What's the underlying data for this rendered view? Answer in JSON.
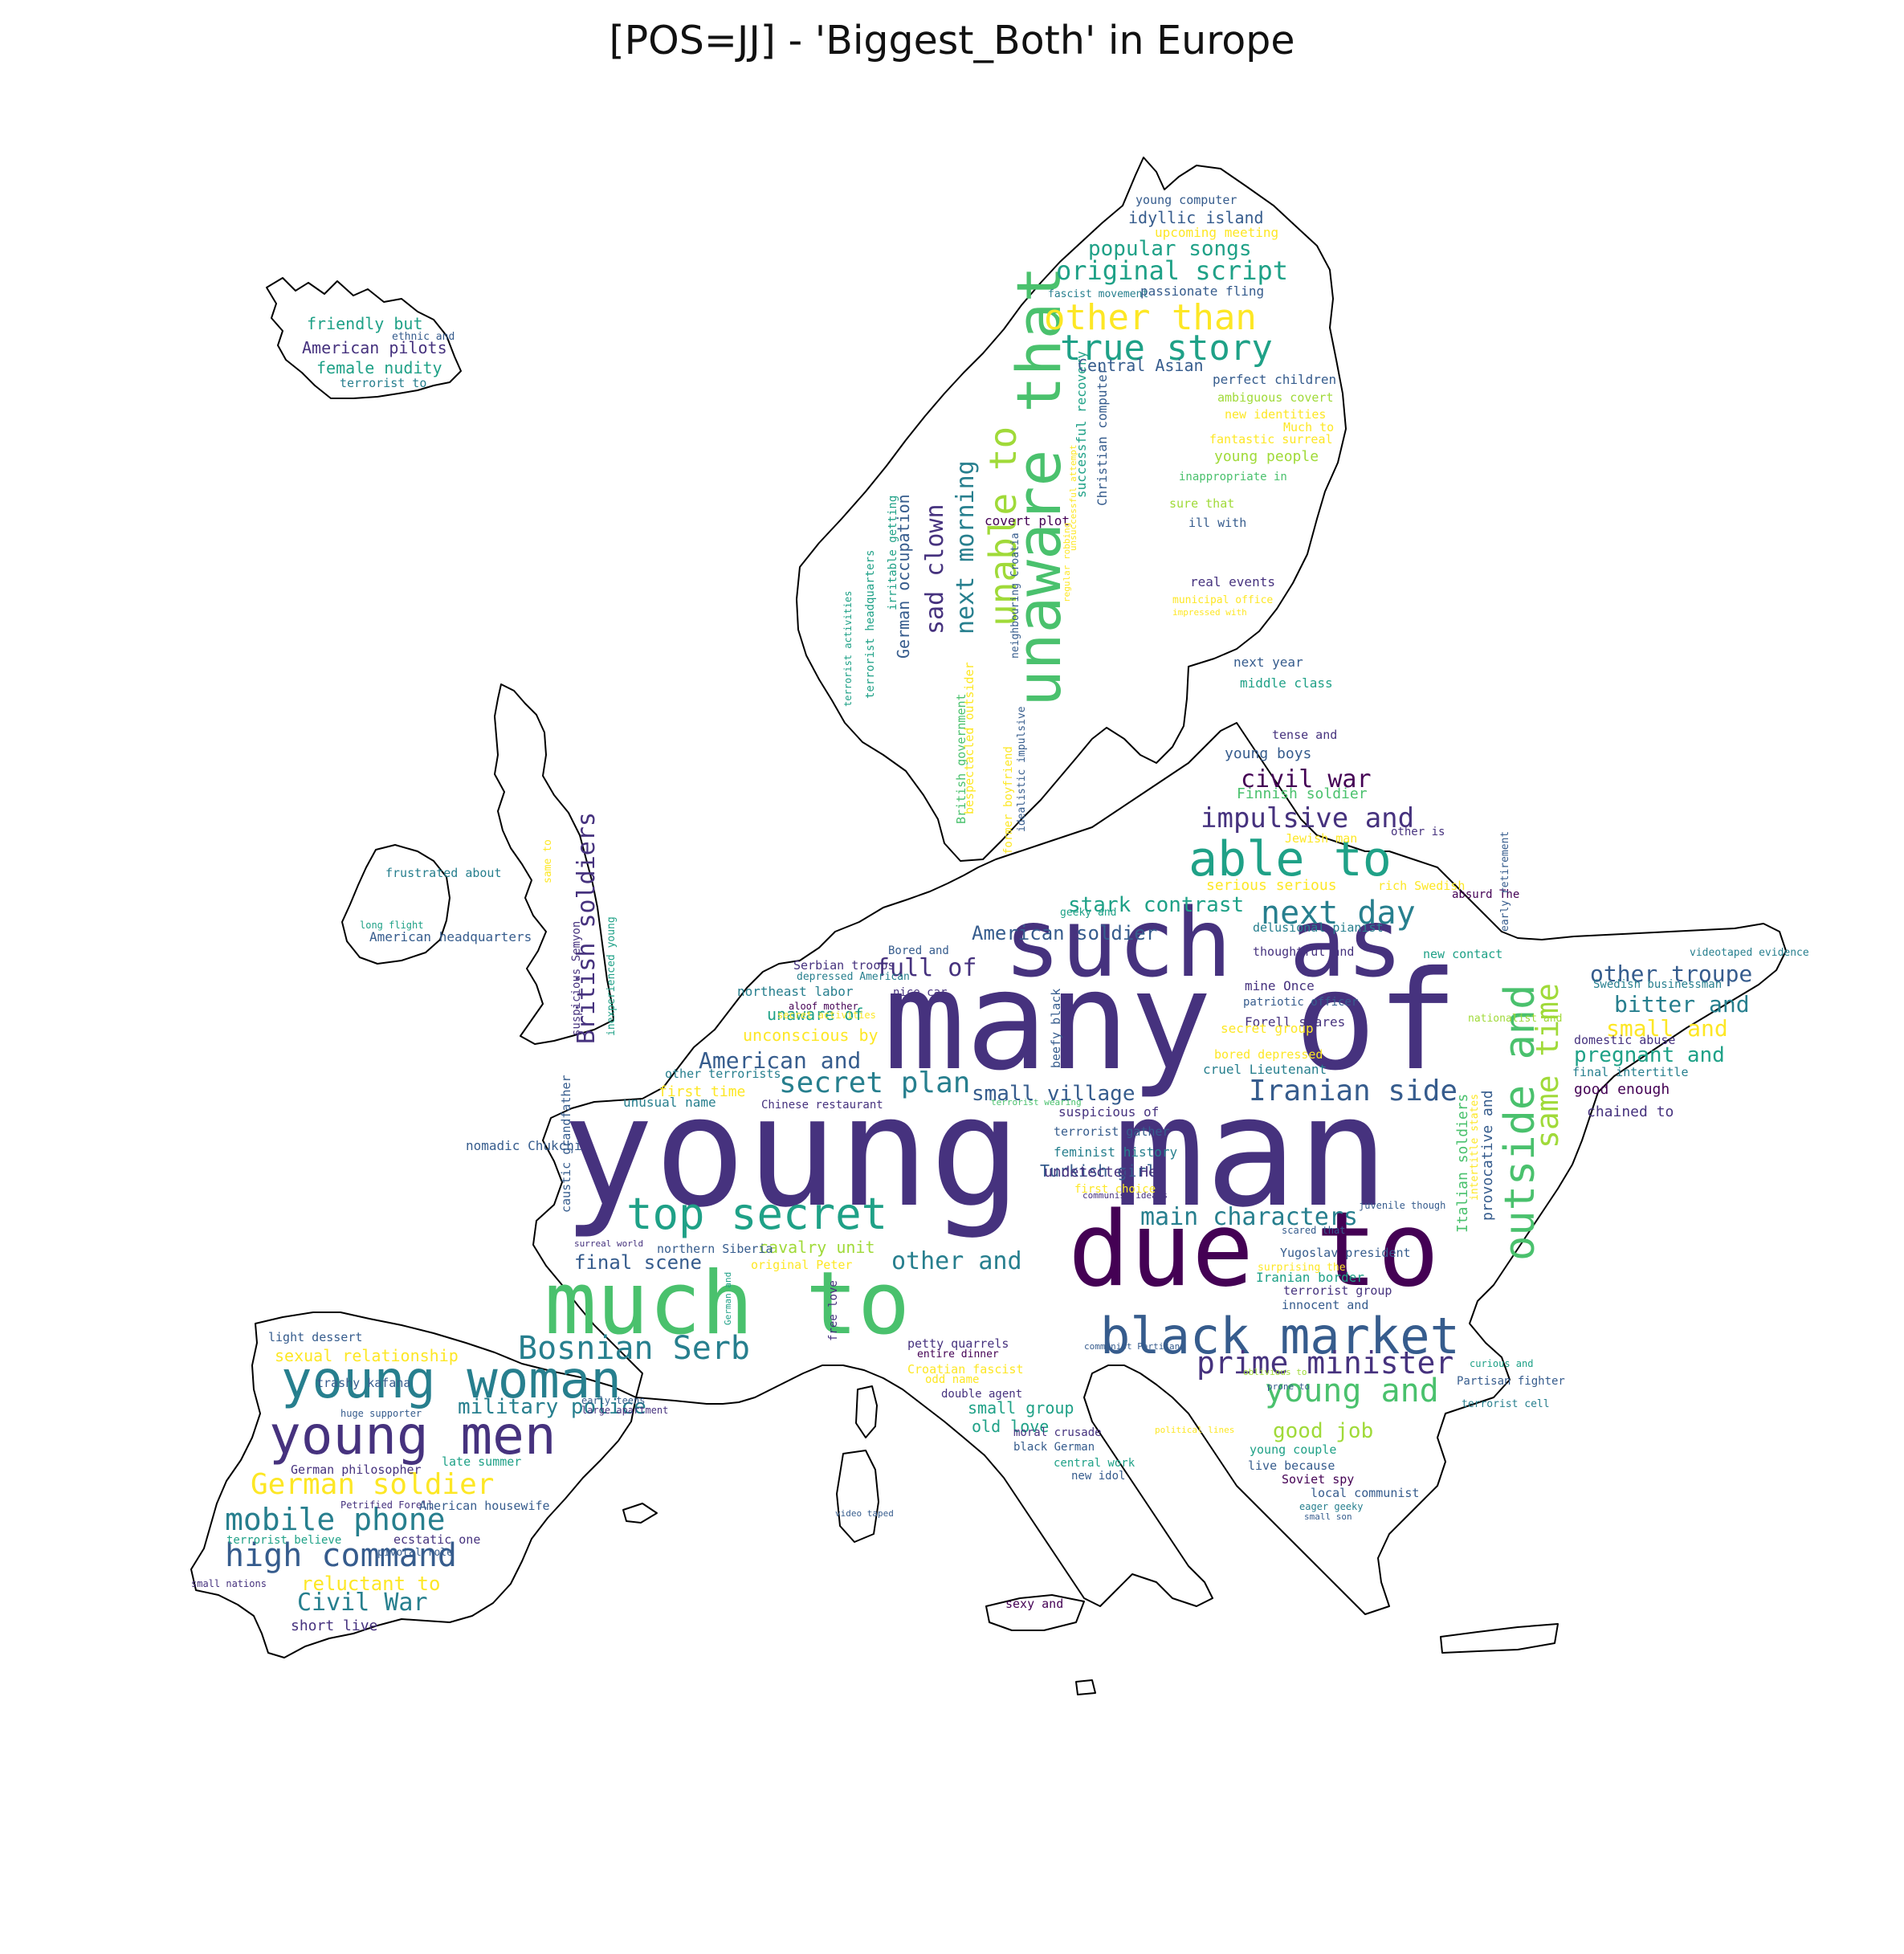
{
  "title": "[POS=JJ] - 'Biggest_Both' in Europe",
  "palette": {
    "c1": "#440154",
    "c2": "#46327e",
    "c3": "#365c8d",
    "c4": "#277f8e",
    "c5": "#1fa187",
    "c6": "#4ac16d",
    "c7": "#a0da39",
    "c8": "#fde725"
  },
  "words": [
    {
      "t": "young man",
      "c": "c2"
    },
    {
      "t": "many of",
      "c": "c2"
    },
    {
      "t": "such as",
      "c": "c2"
    },
    {
      "t": "due to",
      "c": "c1"
    },
    {
      "t": "much to",
      "c": "c6"
    },
    {
      "t": "unaware that",
      "c": "c6"
    },
    {
      "t": "black market",
      "c": "c3"
    },
    {
      "t": "top secret",
      "c": "c5"
    },
    {
      "t": "young woman",
      "c": "c4"
    },
    {
      "t": "young men",
      "c": "c2"
    },
    {
      "t": "able to",
      "c": "c5"
    },
    {
      "t": "outside and",
      "c": "c6"
    },
    {
      "t": "same time",
      "c": "c7"
    },
    {
      "t": "other than",
      "c": "c8"
    },
    {
      "t": "true story",
      "c": "c5"
    },
    {
      "t": "Bosnian Serb",
      "c": "c4"
    },
    {
      "t": "prime minister",
      "c": "c2"
    },
    {
      "t": "young and",
      "c": "c6"
    },
    {
      "t": "next day",
      "c": "c4"
    },
    {
      "t": "Iranian side",
      "c": "c3"
    },
    {
      "t": "secret plan",
      "c": "c4"
    },
    {
      "t": "high command",
      "c": "c3"
    },
    {
      "t": "mobile phone",
      "c": "c4"
    },
    {
      "t": "German soldier",
      "c": "c8"
    },
    {
      "t": "unable to",
      "c": "c7"
    },
    {
      "t": "impulsive and",
      "c": "c2"
    },
    {
      "t": "original script",
      "c": "c5"
    },
    {
      "t": "popular songs",
      "c": "c5"
    },
    {
      "t": "next morning",
      "c": "c4"
    },
    {
      "t": "sad clown",
      "c": "c2"
    },
    {
      "t": "British soldiers",
      "c": "c2"
    },
    {
      "t": "civil war",
      "c": "c1"
    },
    {
      "t": "full of",
      "c": "c2"
    },
    {
      "t": "American and",
      "c": "c3"
    },
    {
      "t": "other and",
      "c": "c4"
    },
    {
      "t": "main characters",
      "c": "c4"
    },
    {
      "t": "Civil War",
      "c": "c4"
    },
    {
      "t": "military police",
      "c": "c4"
    },
    {
      "t": "small village",
      "c": "c3"
    },
    {
      "t": "other troupe",
      "c": "c3"
    },
    {
      "t": "bitter and",
      "c": "c4"
    },
    {
      "t": "small and",
      "c": "c8"
    },
    {
      "t": "pregnant and",
      "c": "c5"
    },
    {
      "t": "final scene",
      "c": "c3"
    },
    {
      "t": "reluctant to",
      "c": "c8"
    },
    {
      "t": "stark contrast",
      "c": "c5"
    },
    {
      "t": "American soldier",
      "c": "c3"
    },
    {
      "t": "good job",
      "c": "c7"
    },
    {
      "t": "sexual relationship",
      "c": "c8"
    },
    {
      "t": "small group",
      "c": "c5"
    },
    {
      "t": "old love",
      "c": "c5"
    },
    {
      "t": "cavalry unit",
      "c": "c7"
    },
    {
      "t": "unaware of",
      "c": "c5"
    },
    {
      "t": "unconscious by",
      "c": "c8"
    },
    {
      "t": "first time",
      "c": "c8"
    },
    {
      "t": "Turkish girl",
      "c": "c3"
    },
    {
      "t": "idyllic island",
      "c": "c3"
    },
    {
      "t": "German occupation",
      "c": "c3"
    },
    {
      "t": "Christian computer",
      "c": "c3"
    },
    {
      "t": "successful recovery",
      "c": "c5"
    },
    {
      "t": "Central Asian",
      "c": "c3"
    },
    {
      "t": "young people",
      "c": "c7"
    },
    {
      "t": "young boys",
      "c": "c3"
    },
    {
      "t": "Finnish soldier",
      "c": "c6"
    },
    {
      "t": "friendly but",
      "c": "c5"
    },
    {
      "t": "American pilots",
      "c": "c2"
    },
    {
      "t": "female nudity",
      "c": "c5"
    },
    {
      "t": "terrorist to",
      "c": "c4"
    },
    {
      "t": "ethnic and",
      "c": "c3"
    },
    {
      "t": "young computer",
      "c": "c3"
    },
    {
      "t": "upcoming meeting",
      "c": "c8"
    },
    {
      "t": "passionate fling",
      "c": "c3"
    },
    {
      "t": "fascist movement",
      "c": "c4"
    },
    {
      "t": "perfect children",
      "c": "c3"
    },
    {
      "t": "ambiguous covert",
      "c": "c7"
    },
    {
      "t": "new identities",
      "c": "c8"
    },
    {
      "t": "Much to",
      "c": "c8"
    },
    {
      "t": "fantastic surreal",
      "c": "c8"
    },
    {
      "t": "inappropriate in",
      "c": "c6"
    },
    {
      "t": "sure that",
      "c": "c7"
    },
    {
      "t": "ill with",
      "c": "c3"
    },
    {
      "t": "covert plot",
      "c": "c1"
    },
    {
      "t": "real events",
      "c": "c2"
    },
    {
      "t": "municipal office",
      "c": "c8"
    },
    {
      "t": "impressed with",
      "c": "c8"
    },
    {
      "t": "next year",
      "c": "c3"
    },
    {
      "t": "middle class",
      "c": "c5"
    },
    {
      "t": "tense and",
      "c": "c2"
    },
    {
      "t": "other is",
      "c": "c2"
    },
    {
      "t": "Jewish man",
      "c": "c8"
    },
    {
      "t": "serious serious",
      "c": "c8"
    },
    {
      "t": "rich Swedish",
      "c": "c8"
    },
    {
      "t": "absurd The",
      "c": "c1"
    },
    {
      "t": "geeky and",
      "c": "c5"
    },
    {
      "t": "delusional pianist",
      "c": "c4"
    },
    {
      "t": "thoughtful and",
      "c": "c2"
    },
    {
      "t": "new contact",
      "c": "c5"
    },
    {
      "t": "videotaped evidence",
      "c": "c4"
    },
    {
      "t": "Swedish businessman",
      "c": "c4"
    },
    {
      "t": "early retirement",
      "c": "c3"
    },
    {
      "t": "mine Once",
      "c": "c2"
    },
    {
      "t": "patriotic officer",
      "c": "c3"
    },
    {
      "t": "nationalist and",
      "c": "c7"
    },
    {
      "t": "Forell stares",
      "c": "c2"
    },
    {
      "t": "secret group",
      "c": "c8"
    },
    {
      "t": "domestic abuse",
      "c": "c2"
    },
    {
      "t": "bored depressed",
      "c": "c8"
    },
    {
      "t": "cruel Lieutenant",
      "c": "c4"
    },
    {
      "t": "final intertitle",
      "c": "c4"
    },
    {
      "t": "good enough",
      "c": "c1"
    },
    {
      "t": "chained to",
      "c": "c2"
    },
    {
      "t": "suspicious of",
      "c": "c2"
    },
    {
      "t": "terrorist gather",
      "c": "c3"
    },
    {
      "t": "feminist history",
      "c": "c4"
    },
    {
      "t": "undetected He",
      "c": "c2"
    },
    {
      "t": "first choice",
      "c": "c8"
    },
    {
      "t": "communist ideals",
      "c": "c2"
    },
    {
      "t": "juvenile though",
      "c": "c3"
    },
    {
      "t": "scared that",
      "c": "c3"
    },
    {
      "t": "Yugoslav president",
      "c": "c3"
    },
    {
      "t": "surprising the",
      "c": "c8"
    },
    {
      "t": "Iranian border",
      "c": "c5"
    },
    {
      "t": "terrorist group",
      "c": "c2"
    },
    {
      "t": "innocent and",
      "c": "c3"
    },
    {
      "t": "Italian soldiers",
      "c": "c6"
    },
    {
      "t": "provocative and",
      "c": "c3"
    },
    {
      "t": "intertitle states",
      "c": "c8"
    },
    {
      "t": "Bored and",
      "c": "c3"
    },
    {
      "t": "Serbian troops",
      "c": "c2"
    },
    {
      "t": "depressed American",
      "c": "c4"
    },
    {
      "t": "northeast labor",
      "c": "c4"
    },
    {
      "t": "nice car",
      "c": "c2"
    },
    {
      "t": "aloof mother",
      "c": "c1"
    },
    {
      "t": "secret activities",
      "c": "c8"
    },
    {
      "t": "other terrorists",
      "c": "c4"
    },
    {
      "t": "Chinese restaurant",
      "c": "c2"
    },
    {
      "t": "unusual name",
      "c": "c4"
    },
    {
      "t": "terrorist wearing",
      "c": "c6"
    },
    {
      "t": "beefy black",
      "c": "c3"
    },
    {
      "t": "nomadic Chukchi",
      "c": "c3"
    },
    {
      "t": "caustic grandfather",
      "c": "c3"
    },
    {
      "t": "inexperienced young",
      "c": "c5"
    },
    {
      "t": "suspicious Semyon",
      "c": "c2"
    },
    {
      "t": "same to",
      "c": "c8"
    },
    {
      "t": "frustrated about",
      "c": "c4"
    },
    {
      "t": "long flight",
      "c": "c5"
    },
    {
      "t": "American headquarters",
      "c": "c3"
    },
    {
      "t": "terrorist headquarters",
      "c": "c5"
    },
    {
      "t": "irritable getting",
      "c": "c5"
    },
    {
      "t": "terrorist activities",
      "c": "c5"
    },
    {
      "t": "idealistic impulsive",
      "c": "c3"
    },
    {
      "t": "neighbouring Croatia",
      "c": "c3"
    },
    {
      "t": "regular robbing",
      "c": "c8"
    },
    {
      "t": "unsuccessful attempt",
      "c": "c8"
    },
    {
      "t": "former boyfriend",
      "c": "c8"
    },
    {
      "t": "British government",
      "c": "c6"
    },
    {
      "t": "bespectacled outsider",
      "c": "c8"
    },
    {
      "t": "German and",
      "c": "c5"
    },
    {
      "t": "free love",
      "c": "c2"
    },
    {
      "t": "northern Siberia",
      "c": "c3"
    },
    {
      "t": "original Peter",
      "c": "c8"
    },
    {
      "t": "surreal world",
      "c": "c2"
    },
    {
      "t": "light dessert",
      "c": "c3"
    },
    {
      "t": "trashy kafana",
      "c": "c3"
    },
    {
      "t": "huge supporter",
      "c": "c3"
    },
    {
      "t": "early teens",
      "c": "c3"
    },
    {
      "t": "large apartment",
      "c": "c2"
    },
    {
      "t": "German philosopher",
      "c": "c2"
    },
    {
      "t": "late summer",
      "c": "c5"
    },
    {
      "t": "Petrified Forell",
      "c": "c2"
    },
    {
      "t": "American housewife",
      "c": "c3"
    },
    {
      "t": "terrorist believe",
      "c": "c5"
    },
    {
      "t": "ecstatic one",
      "c": "c2"
    },
    {
      "t": "pivotal role",
      "c": "c3"
    },
    {
      "t": "small nations",
      "c": "c2"
    },
    {
      "t": "short live",
      "c": "c2"
    },
    {
      "t": "petty quarrels",
      "c": "c2"
    },
    {
      "t": "entire dinner",
      "c": "c1"
    },
    {
      "t": "Croatian fascist",
      "c": "c8"
    },
    {
      "t": "odd name",
      "c": "c8"
    },
    {
      "t": "double agent",
      "c": "c2"
    },
    {
      "t": "moral crusade",
      "c": "c2"
    },
    {
      "t": "black German",
      "c": "c3"
    },
    {
      "t": "central work",
      "c": "c5"
    },
    {
      "t": "new idol",
      "c": "c3"
    },
    {
      "t": "video taped",
      "c": "c3"
    },
    {
      "t": "sexy and",
      "c": "c1"
    },
    {
      "t": "political lines",
      "c": "c8"
    },
    {
      "t": "communist Partisan",
      "c": "c3"
    },
    {
      "t": "oblivious to",
      "c": "c7"
    },
    {
      "t": "prone to",
      "c": "c3"
    },
    {
      "t": "curious and",
      "c": "c5"
    },
    {
      "t": "Partisan fighter",
      "c": "c3"
    },
    {
      "t": "terrorist cell",
      "c": "c4"
    },
    {
      "t": "young couple",
      "c": "c5"
    },
    {
      "t": "live because",
      "c": "c3"
    },
    {
      "t": "Soviet spy",
      "c": "c1"
    },
    {
      "t": "local communist",
      "c": "c3"
    },
    {
      "t": "eager geeky",
      "c": "c4"
    },
    {
      "t": "small son",
      "c": "c3"
    }
  ]
}
